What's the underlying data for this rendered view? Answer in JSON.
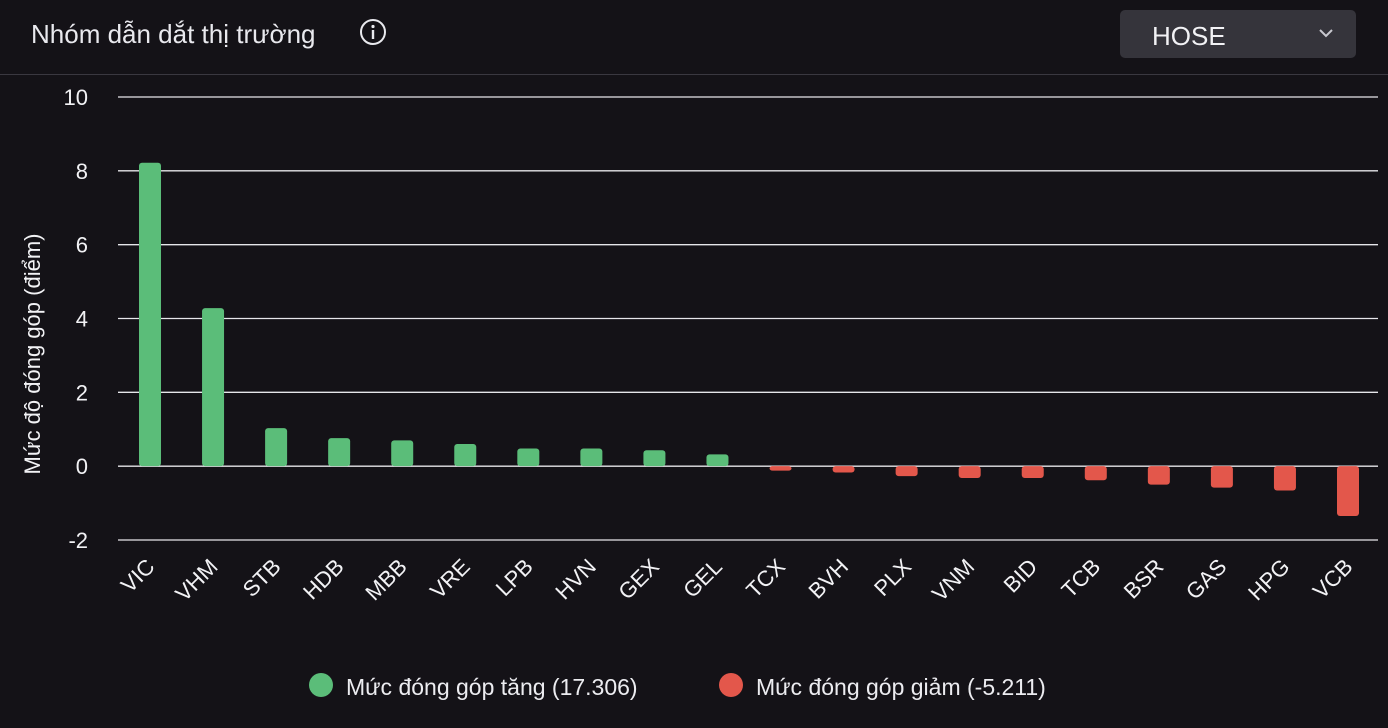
{
  "header": {
    "title": "Nhóm dẫn dắt thị trường",
    "info_icon": "info-circle-icon",
    "exchange_select": {
      "value": "HOSE",
      "icon": "chevron-down-icon"
    }
  },
  "chart_data": {
    "type": "bar",
    "categories": [
      "VIC",
      "VHM",
      "STB",
      "HDB",
      "MBB",
      "VRE",
      "LPB",
      "HVN",
      "GEX",
      "GEL",
      "TCX",
      "BVH",
      "PLX",
      "VNM",
      "BID",
      "TCB",
      "BSR",
      "GAS",
      "HPG",
      "VCB"
    ],
    "values": [
      8.22,
      4.28,
      1.03,
      0.76,
      0.7,
      0.6,
      0.48,
      0.48,
      0.43,
      0.32,
      -0.12,
      -0.17,
      -0.27,
      -0.32,
      -0.32,
      -0.38,
      -0.5,
      -0.58,
      -0.66,
      -1.35
    ],
    "ylabel": "Mức độ đóng góp (điểm)",
    "ylim": [
      -2,
      10
    ],
    "yticks": [
      10,
      8,
      6,
      4,
      2,
      0,
      -2
    ],
    "grid": true,
    "legend_position": "bottom",
    "colors": {
      "positive": "#5bbd79",
      "negative": "#e3574b"
    },
    "legend": [
      {
        "label": "Mức đóng góp tăng (17.306)",
        "color": "#5bbd79"
      },
      {
        "label": "Mức đóng góp giảm (-5.211)",
        "color": "#e3574b"
      }
    ]
  }
}
